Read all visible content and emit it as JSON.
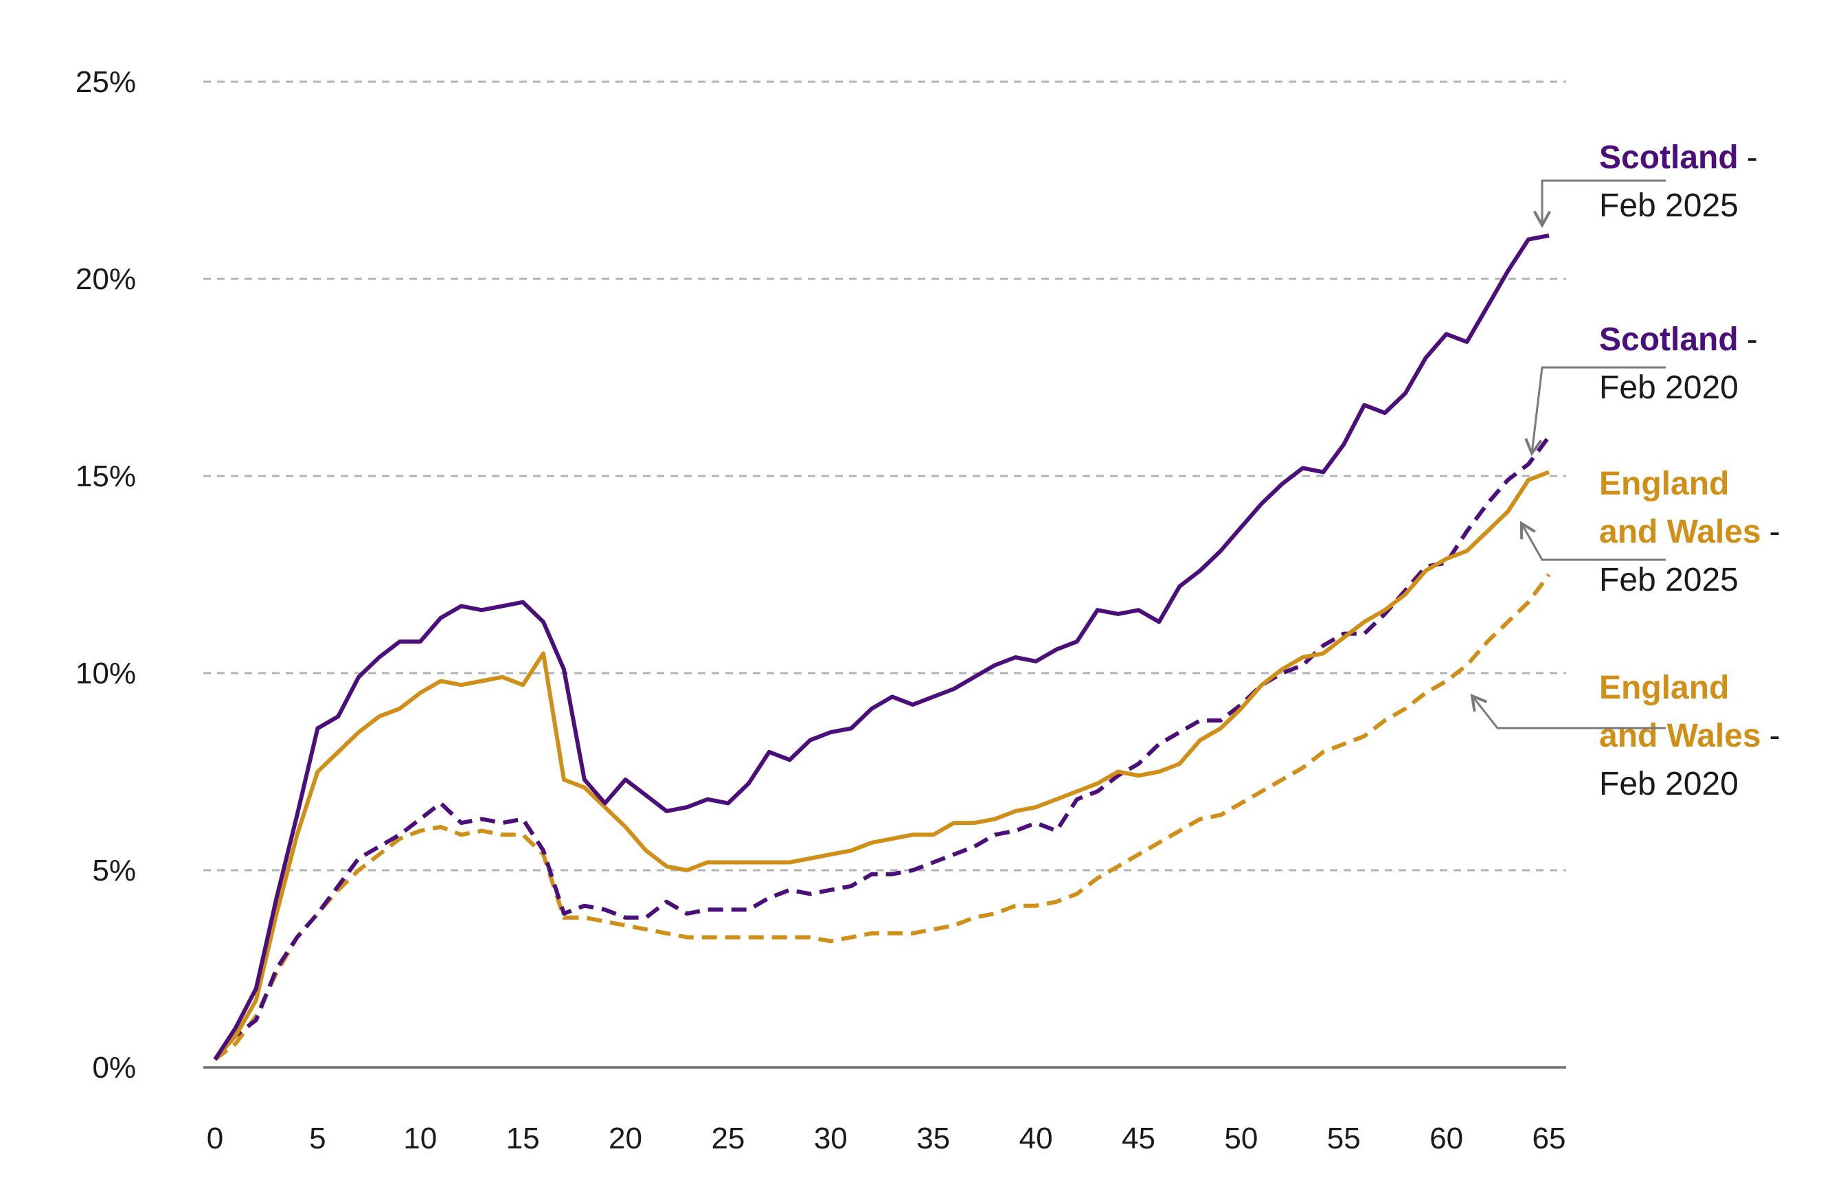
{
  "chart_data": {
    "type": "line",
    "title": "",
    "xlabel": "",
    "ylabel": "",
    "xlim": [
      0,
      65
    ],
    "ylim": [
      0,
      25
    ],
    "x_ticks": [
      "0",
      "5",
      "10",
      "15",
      "20",
      "25",
      "30",
      "35",
      "40",
      "45",
      "50",
      "55",
      "60",
      "65"
    ],
    "y_ticks": [
      "0%",
      "5%",
      "10%",
      "15%",
      "20%",
      "25%"
    ],
    "grid": "horizontal dashed",
    "colors": {
      "scotland": "#4b0f7c",
      "england_wales": "#d08f18",
      "grid": "#b3b3b3",
      "axis": "#6f6f6f"
    },
    "x": [
      0,
      1,
      2,
      3,
      4,
      5,
      6,
      7,
      8,
      9,
      10,
      11,
      12,
      13,
      14,
      15,
      16,
      17,
      18,
      19,
      20,
      21,
      22,
      23,
      24,
      25,
      26,
      27,
      28,
      29,
      30,
      31,
      32,
      33,
      34,
      35,
      36,
      37,
      38,
      39,
      40,
      41,
      42,
      43,
      44,
      45,
      46,
      47,
      48,
      49,
      50,
      51,
      52,
      53,
      54,
      55,
      56,
      57,
      58,
      59,
      60,
      61,
      62,
      63,
      64,
      65
    ],
    "series": [
      {
        "key": "scotland_2025",
        "color": "#4b0f7c",
        "dashed": false,
        "values": [
          0.2,
          1.0,
          2.0,
          4.3,
          6.4,
          8.6,
          8.9,
          9.9,
          10.4,
          10.8,
          10.8,
          11.4,
          11.7,
          11.6,
          11.7,
          11.8,
          11.3,
          10.1,
          7.3,
          6.7,
          7.3,
          6.9,
          6.5,
          6.6,
          6.8,
          6.7,
          7.2,
          8.0,
          7.8,
          8.3,
          8.5,
          8.6,
          9.1,
          9.4,
          9.2,
          9.4,
          9.6,
          9.9,
          10.2,
          10.4,
          10.3,
          10.6,
          10.8,
          11.6,
          11.5,
          11.6,
          11.3,
          12.2,
          12.6,
          13.1,
          13.7,
          14.3,
          14.8,
          15.2,
          15.1,
          15.8,
          16.8,
          16.6,
          17.1,
          18.0,
          18.6,
          18.4,
          19.3,
          20.2,
          21.0,
          21.1
        ]
      },
      {
        "key": "scotland_2020",
        "color": "#4b0f7c",
        "dashed": true,
        "values": [
          0.2,
          0.8,
          1.2,
          2.5,
          3.3,
          3.9,
          4.6,
          5.3,
          5.6,
          5.9,
          6.3,
          6.7,
          6.2,
          6.3,
          6.2,
          6.3,
          5.5,
          3.9,
          4.1,
          4.0,
          3.8,
          3.8,
          4.2,
          3.9,
          4.0,
          4.0,
          4.0,
          4.3,
          4.5,
          4.4,
          4.5,
          4.6,
          4.9,
          4.9,
          5.0,
          5.2,
          5.4,
          5.6,
          5.9,
          6.0,
          6.2,
          6.0,
          6.8,
          7.0,
          7.4,
          7.7,
          8.2,
          8.5,
          8.8,
          8.8,
          9.2,
          9.7,
          10.0,
          10.2,
          10.7,
          11.0,
          11.0,
          11.5,
          12.1,
          12.7,
          12.8,
          13.6,
          14.3,
          14.9,
          15.3,
          16.0
        ]
      },
      {
        "key": "england_wales_2025",
        "color": "#d08f18",
        "dashed": false,
        "values": [
          0.2,
          0.8,
          1.7,
          3.9,
          5.9,
          7.5,
          8.0,
          8.5,
          8.9,
          9.1,
          9.5,
          9.8,
          9.7,
          9.8,
          9.9,
          9.7,
          10.5,
          7.3,
          7.1,
          6.6,
          6.1,
          5.5,
          5.1,
          5.0,
          5.2,
          5.2,
          5.2,
          5.2,
          5.2,
          5.3,
          5.4,
          5.5,
          5.7,
          5.8,
          5.9,
          5.9,
          6.2,
          6.2,
          6.3,
          6.5,
          6.6,
          6.8,
          7.0,
          7.2,
          7.5,
          7.4,
          7.5,
          7.7,
          8.3,
          8.6,
          9.1,
          9.7,
          10.1,
          10.4,
          10.5,
          10.9,
          11.3,
          11.6,
          12.0,
          12.6,
          12.9,
          13.1,
          13.6,
          14.1,
          14.9,
          15.1
        ]
      },
      {
        "key": "england_wales_2020",
        "color": "#d08f18",
        "dashed": true,
        "values": [
          0.2,
          0.6,
          1.3,
          2.4,
          3.3,
          3.9,
          4.5,
          5.0,
          5.4,
          5.8,
          6.0,
          6.1,
          5.9,
          6.0,
          5.9,
          5.9,
          5.4,
          3.8,
          3.8,
          3.7,
          3.6,
          3.5,
          3.4,
          3.3,
          3.3,
          3.3,
          3.3,
          3.3,
          3.3,
          3.3,
          3.2,
          3.3,
          3.4,
          3.4,
          3.4,
          3.5,
          3.6,
          3.8,
          3.9,
          4.1,
          4.1,
          4.2,
          4.4,
          4.8,
          5.1,
          5.4,
          5.7,
          6.0,
          6.3,
          6.4,
          6.7,
          7.0,
          7.3,
          7.6,
          8.0,
          8.2,
          8.4,
          8.8,
          9.1,
          9.5,
          9.8,
          10.2,
          10.8,
          11.3,
          11.8,
          12.5
        ]
      }
    ],
    "annotations": [
      {
        "key": "scotland_2025",
        "name": "Scotland",
        "suffix": "-",
        "date": "Feb 2025",
        "color": "#4b0f7c",
        "point_at_x": 64
      },
      {
        "key": "scotland_2020",
        "name": "Scotland",
        "suffix": "-",
        "date": "Feb 2020",
        "color": "#4b0f7c",
        "point_at_x": 63.5
      },
      {
        "key": "england_wales_2025",
        "name": "England",
        "name2": "and Wales",
        "suffix": "-",
        "date": "Feb 2025",
        "color": "#d08f18",
        "point_at_x": 63
      },
      {
        "key": "england_wales_2020",
        "name": "England",
        "name2": "and Wales",
        "suffix": "-",
        "date": "Feb 2020",
        "color": "#d08f18",
        "point_at_x": 61
      }
    ]
  }
}
